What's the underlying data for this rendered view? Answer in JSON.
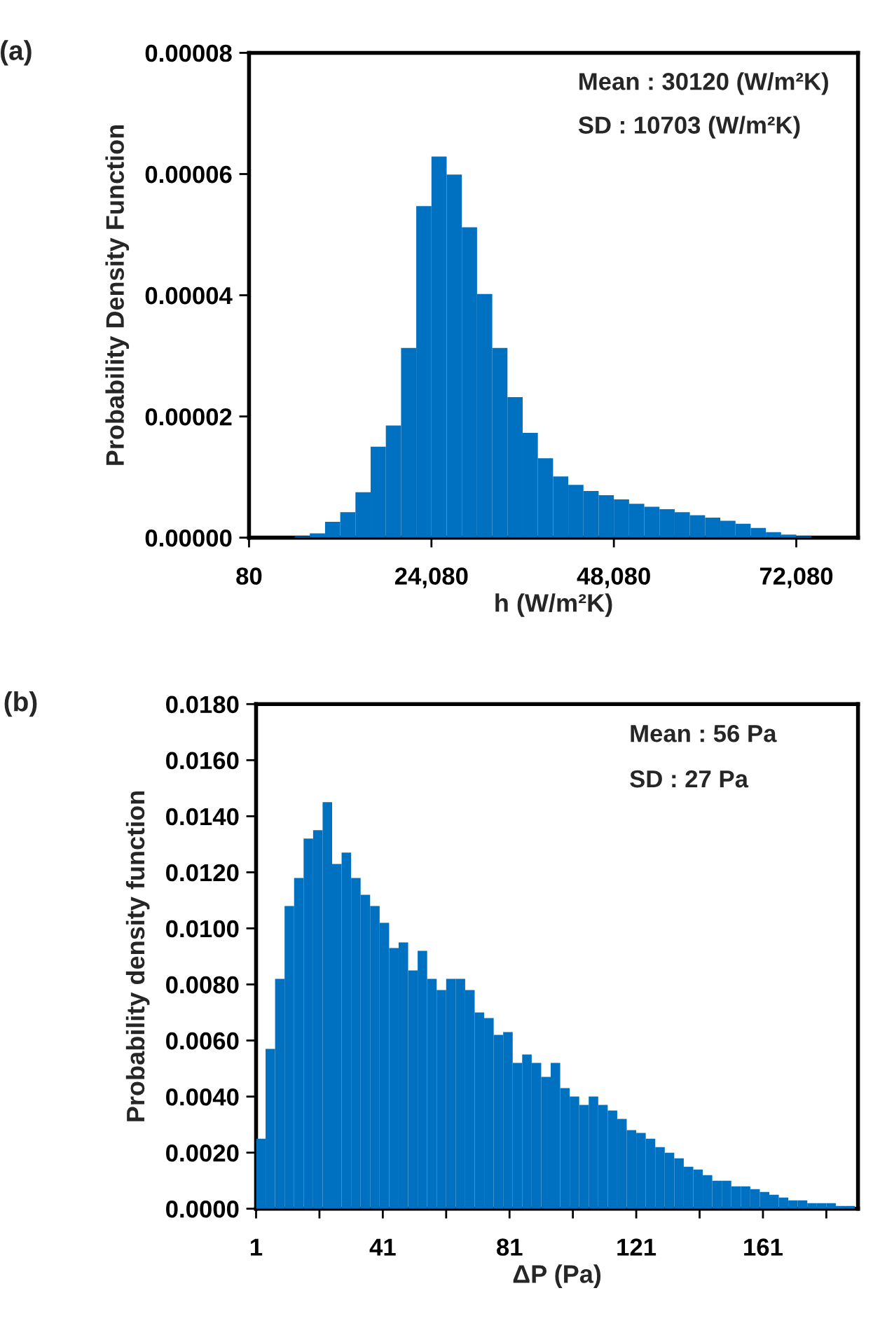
{
  "chart_data": [
    {
      "type": "histogram",
      "title": "(a)",
      "xlabel": "h (W/m²K)",
      "ylabel": "Probability Density Function",
      "color": "#0070c0",
      "bins": [
        80,
        2080,
        4080,
        6080,
        8080,
        10080,
        12080,
        14080,
        16080,
        18080,
        20080,
        22080,
        24080,
        26080,
        28080,
        30080,
        32080,
        34080,
        36080,
        38080,
        40080,
        42080,
        44080,
        46080,
        48080,
        50080,
        52080,
        54080,
        56080,
        58080,
        60080,
        62080,
        64080,
        66080,
        68080,
        70080,
        72080,
        74080,
        76080,
        78080,
        80080
      ],
      "values": [
        0,
        0,
        0,
        2e-07,
        7e-07,
        2.6e-06,
        4.2e-06,
        7.5e-06,
        1.5e-05,
        1.85e-05,
        3.13e-05,
        5.47e-05,
        6.29e-05,
        5.99e-05,
        5.12e-05,
        4.02e-05,
        3.13e-05,
        2.32e-05,
        1.73e-05,
        1.31e-05,
        1.01e-05,
        8.7e-06,
        7.7e-06,
        7e-06,
        6.3e-06,
        5.6e-06,
        5.1e-06,
        4.7e-06,
        4.2e-06,
        3.7e-06,
        3.3e-06,
        2.8e-06,
        2.3e-06,
        1.6e-06,
        9e-07,
        5e-07,
        2e-07,
        0,
        0,
        0
      ],
      "xlim": [
        80,
        80200
      ],
      "xticks": [
        {
          "value": 80,
          "label": "80"
        },
        {
          "value": 24080,
          "label": "24,080"
        },
        {
          "value": 48080,
          "label": "48,080"
        },
        {
          "value": 72080,
          "label": "72,080"
        }
      ],
      "ylim": [
        0,
        8e-05
      ],
      "yticks": [
        {
          "value": 0,
          "label": "0.00000"
        },
        {
          "value": 2e-05,
          "label": "0.00002"
        },
        {
          "value": 4e-05,
          "label": "0.00004"
        },
        {
          "value": 6e-05,
          "label": "0.00006"
        },
        {
          "value": 8e-05,
          "label": "0.00008"
        }
      ],
      "annotations": [
        "Mean : 30120 (W/m²K)",
        "SD : 10703 (W/m²K)"
      ],
      "grid": false,
      "legend": false
    },
    {
      "type": "histogram",
      "title": "(b)",
      "xlabel": "ΔP (Pa)",
      "ylabel": "Probability density function",
      "color": "#0070c0",
      "bins": [
        1,
        4,
        7,
        10,
        13,
        16,
        19,
        22,
        25,
        28,
        31,
        34,
        37,
        40,
        43,
        46,
        49,
        52,
        55,
        58,
        61,
        64,
        67,
        70,
        73,
        76,
        79,
        82,
        85,
        88,
        91,
        94,
        97,
        100,
        103,
        106,
        109,
        112,
        115,
        118,
        121,
        124,
        127,
        130,
        133,
        136,
        139,
        142,
        145,
        148,
        151,
        154,
        157,
        160,
        163,
        166,
        169,
        172,
        175,
        178,
        181,
        184,
        187,
        190
      ],
      "values": [
        0.0025,
        0.0057,
        0.0082,
        0.0108,
        0.0118,
        0.0132,
        0.0135,
        0.0145,
        0.0123,
        0.0127,
        0.0118,
        0.0112,
        0.0108,
        0.0102,
        0.0093,
        0.0095,
        0.0085,
        0.0092,
        0.0082,
        0.0078,
        0.0082,
        0.0082,
        0.0078,
        0.007,
        0.0068,
        0.0062,
        0.0063,
        0.0052,
        0.0055,
        0.0052,
        0.0047,
        0.0052,
        0.0043,
        0.004,
        0.0037,
        0.004,
        0.0037,
        0.0035,
        0.0032,
        0.0028,
        0.0027,
        0.0025,
        0.0022,
        0.002,
        0.0018,
        0.0015,
        0.0014,
        0.0012,
        0.001,
        0.001,
        0.0008,
        0.0008,
        0.0007,
        0.0006,
        0.0005,
        0.0004,
        0.0003,
        0.0003,
        0.0002,
        0.0002,
        0.0002,
        0.0001,
        0.0001
      ],
      "xlim": [
        1,
        191
      ],
      "xticks": [
        1,
        {
          "value": 21,
          "label": null
        },
        41,
        {
          "value": 61,
          "label": null
        },
        81,
        {
          "value": 101,
          "label": null
        },
        121,
        {
          "value": 141,
          "label": null
        },
        161,
        {
          "value": 181,
          "label": null
        }
      ],
      "ylim": [
        0,
        0.018
      ],
      "yticks": [
        {
          "value": 0,
          "label": "0.0000"
        },
        {
          "value": 0.002,
          "label": "0.0020"
        },
        {
          "value": 0.004,
          "label": "0.0040"
        },
        {
          "value": 0.006,
          "label": "0.0060"
        },
        {
          "value": 0.008,
          "label": "0.0080"
        },
        {
          "value": 0.01,
          "label": "0.0100"
        },
        {
          "value": 0.012,
          "label": "0.0120"
        },
        {
          "value": 0.014,
          "label": "0.0140"
        },
        {
          "value": 0.016,
          "label": "0.0160"
        },
        {
          "value": 0.018,
          "label": "0.0180"
        }
      ],
      "annotations": [
        "Mean : 56 Pa",
        "SD : 27 Pa"
      ],
      "grid": false,
      "legend": false
    }
  ]
}
